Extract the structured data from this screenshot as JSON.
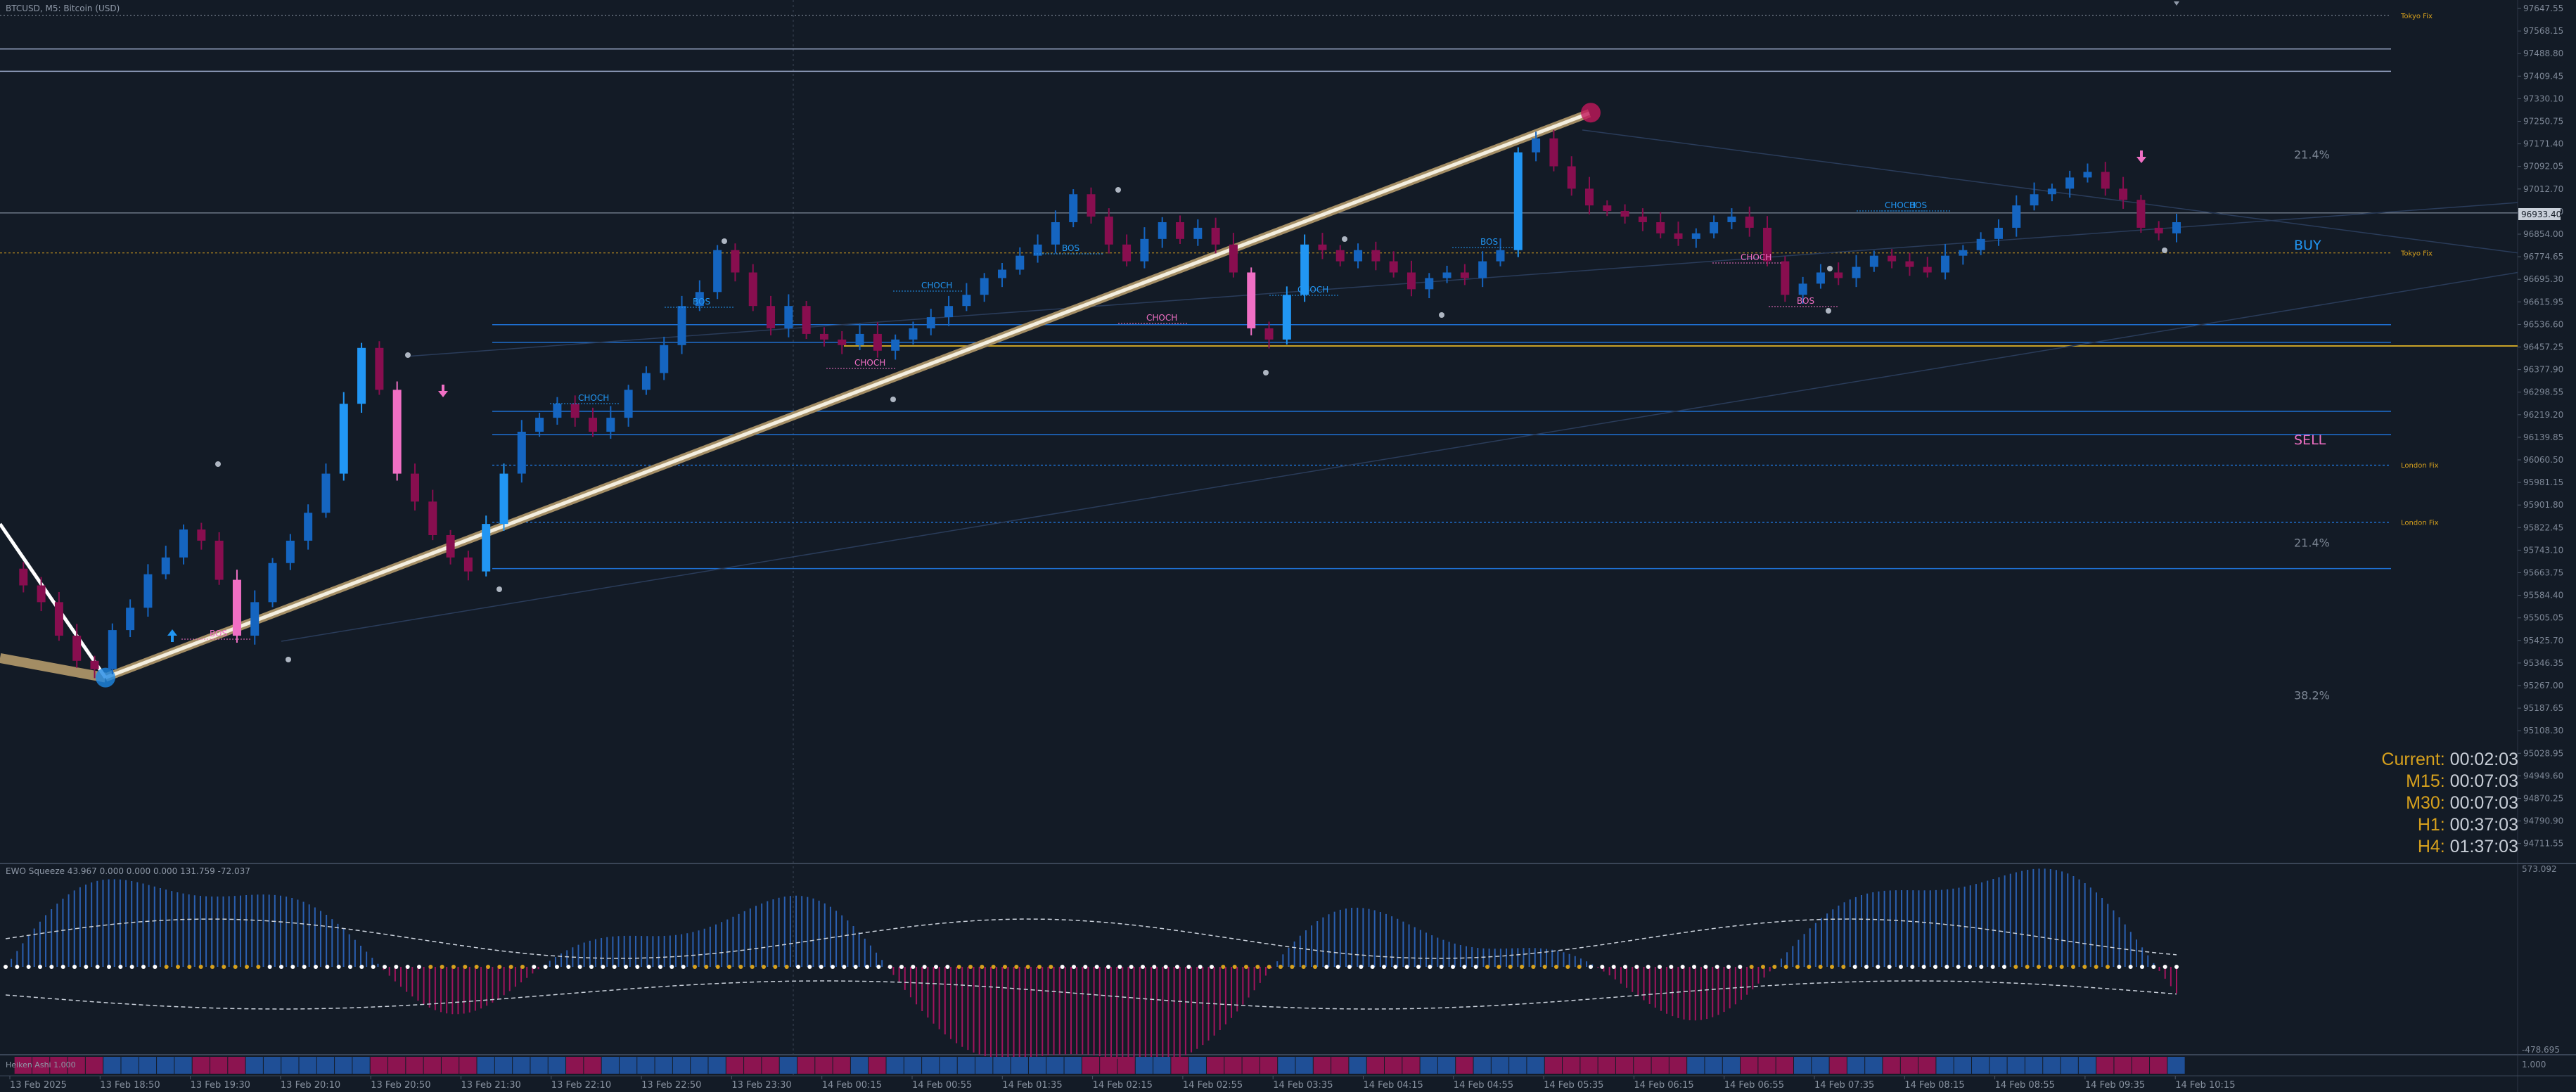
{
  "window": {
    "title": "BTCUSD, M5:  Bitcoin (USD)",
    "indicator_title": "EWO Squeeze 43.967 0.000 0.000 0.000 131.759 -72.037",
    "heiken_title": "Heiken Ashi 1.000"
  },
  "price_axis": {
    "labels": [
      "97647.55",
      "97568.15",
      "97488.80",
      "97409.45",
      "97330.10",
      "97250.75",
      "97171.40",
      "97092.05",
      "97012.70",
      "96933.40",
      "96854.00",
      "96774.65",
      "96695.30",
      "96615.95",
      "96536.60",
      "96457.25",
      "96377.90",
      "96298.55",
      "96219.20",
      "96139.85",
      "96060.50",
      "95981.15",
      "95901.80",
      "95822.45",
      "95743.10",
      "95663.75",
      "95584.40",
      "95505.05",
      "95425.70",
      "95346.35",
      "95267.00",
      "95187.65",
      "95108.30",
      "95028.95",
      "94949.60",
      "94870.25",
      "94790.90",
      "94711.55"
    ],
    "current_price": "96933.40",
    "price_min": 94650,
    "price_max": 97660
  },
  "indicator_axis": {
    "top_label": "573.092",
    "bottom_label": "-478.695",
    "heiken_label": "1.000"
  },
  "time_axis": [
    "13 Feb 2025",
    "13 Feb 18:50",
    "13 Feb 19:30",
    "13 Feb 20:10",
    "13 Feb 20:50",
    "13 Feb 21:30",
    "13 Feb 22:10",
    "13 Feb 22:50",
    "13 Feb 23:30",
    "14 Feb 00:15",
    "14 Feb 00:55",
    "14 Feb 01:35",
    "14 Feb 02:15",
    "14 Feb 02:55",
    "14 Feb 03:35",
    "14 Feb 04:15",
    "14 Feb 04:55",
    "14 Feb 05:35",
    "14 Feb 06:15",
    "14 Feb 06:55",
    "14 Feb 07:35",
    "14 Feb 08:15",
    "14 Feb 08:55",
    "14 Feb 09:35",
    "14 Feb 10:15"
  ],
  "session_levels": [
    {
      "label": "Tokyo Fix",
      "price": 97640,
      "color": "#d7a11d"
    },
    {
      "label": "London Fix",
      "price": 96032,
      "color": "#d7a11d"
    },
    {
      "label": "London Fix",
      "price": 95826,
      "color": "#d7a11d"
    },
    {
      "label": "Tokyo Fix",
      "price": 96790,
      "color": "#d7a11d"
    }
  ],
  "fib_labels": [
    {
      "text": "21.4%",
      "price": 97128
    },
    {
      "text": "21.4%",
      "price": 95738
    },
    {
      "text": "38.2%",
      "price": 95192
    }
  ],
  "signals": {
    "buy": "BUY",
    "sell": "SELL"
  },
  "smc_labels": [
    {
      "text": "BOS",
      "type": "bull"
    },
    {
      "text": "BOS",
      "type": "bull"
    },
    {
      "text": "BOS",
      "type": "bull"
    },
    {
      "text": "BOS",
      "type": "bull"
    },
    {
      "text": "BOS",
      "type": "bear"
    },
    {
      "text": "BOS",
      "type": "bear"
    },
    {
      "text": "CHOCH",
      "type": "bull"
    },
    {
      "text": "CHOCH",
      "type": "bull"
    },
    {
      "text": "CHOCH",
      "type": "bull"
    },
    {
      "text": "CHOCH",
      "type": "bull"
    },
    {
      "text": "CHOCH",
      "type": "bear"
    },
    {
      "text": "CHOCH",
      "type": "bear"
    },
    {
      "text": "CHOCH",
      "type": "bear"
    }
  ],
  "timers": [
    {
      "label": "Current:",
      "value": "00:02:03"
    },
    {
      "label": "M15:",
      "value": "00:07:03"
    },
    {
      "label": "M30:",
      "value": "00:07:03"
    },
    {
      "label": "H1:",
      "value": "00:37:03"
    },
    {
      "label": "H4:",
      "value": "01:37:03"
    }
  ],
  "colors": {
    "background": "#131b26",
    "bull": "#1e88e5",
    "bull_strong": "#2196f3",
    "bear": "#880e4f",
    "bear_light": "#f06fc4",
    "gold": "#d7a11d",
    "grid": "#243040"
  },
  "chart_data": {
    "type": "candlestick",
    "symbol": "BTCUSD",
    "timeframe": "M5",
    "price_path": [
      95660,
      95600,
      95540,
      95420,
      95330,
      95300,
      95440,
      95520,
      95640,
      95700,
      95800,
      95760,
      95620,
      95420,
      95540,
      95680,
      95760,
      95860,
      96000,
      96250,
      96450,
      96300,
      96000,
      95900,
      95780,
      95700,
      95650,
      95820,
      96000,
      96150,
      96200,
      96250,
      96200,
      96150,
      96200,
      96300,
      96360,
      96460,
      96600,
      96650,
      96800,
      96720,
      96600,
      96520,
      96600,
      96500,
      96480,
      96460,
      96500,
      96440,
      96480,
      96520,
      96560,
      96600,
      96640,
      96700,
      96730,
      96780,
      96820,
      96900,
      97000,
      96920,
      96820,
      96760,
      96840,
      96900,
      96840,
      96880,
      96820,
      96720,
      96520,
      96480,
      96640,
      96820,
      96800,
      96760,
      96800,
      96760,
      96720,
      96660,
      96700,
      96720,
      96700,
      96760,
      96800,
      97150,
      97200,
      97100,
      97020,
      96960,
      96940,
      96920,
      96900,
      96860,
      96840,
      96860,
      96900,
      96920,
      96880,
      96760,
      96640,
      96680,
      96720,
      96700,
      96740,
      96780,
      96760,
      96740,
      96720,
      96780,
      96800,
      96840,
      96880,
      96960,
      97000,
      97020,
      97060,
      97080,
      97020,
      96980,
      96880,
      96860,
      96900
    ]
  }
}
